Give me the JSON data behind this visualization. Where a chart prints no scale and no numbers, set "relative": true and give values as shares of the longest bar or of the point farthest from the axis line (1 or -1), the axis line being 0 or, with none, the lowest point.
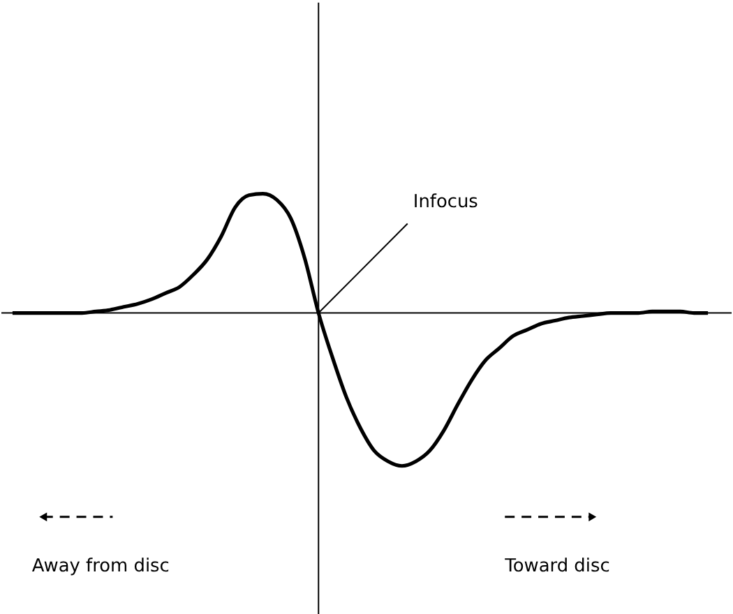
{
  "chart_data": {
    "type": "line",
    "relative": true,
    "categories": [
      null,
      null,
      null,
      null,
      null,
      null,
      null,
      null,
      null,
      null,
      null,
      null,
      null,
      null,
      null,
      null,
      null,
      null,
      null,
      null,
      null,
      null,
      null,
      null,
      null,
      null,
      null,
      null,
      null,
      null,
      null,
      null,
      null,
      null,
      null,
      null,
      null,
      null,
      null,
      null,
      null,
      null,
      null,
      null,
      null,
      null,
      null,
      null,
      null,
      null,
      null
    ],
    "series": [
      {
        "color": "#000000",
        "values": [
          0,
          0,
          0,
          0,
          0,
          0,
          0.01,
          0.02,
          0.04,
          0.06,
          0.09,
          0.13,
          0.17,
          0.25,
          0.35,
          0.5,
          0.69,
          0.77,
          0.78,
          0.74,
          0.62,
          0.36,
          0,
          -0.29,
          -0.55,
          -0.75,
          -0.9,
          -0.97,
          -1,
          -0.97,
          -0.9,
          -0.77,
          -0.6,
          -0.44,
          -0.31,
          -0.23,
          -0.15,
          -0.11,
          -0.07,
          -0.05,
          -0.03,
          -0.02,
          -0.01,
          0,
          0,
          0,
          0.01,
          0.01,
          0.01,
          0,
          0
        ]
      }
    ],
    "annotations": [
      "Infocus",
      "Away from disc",
      "Toward disc"
    ],
    "grid": false,
    "marker": "none",
    "line_style": "solid"
  }
}
